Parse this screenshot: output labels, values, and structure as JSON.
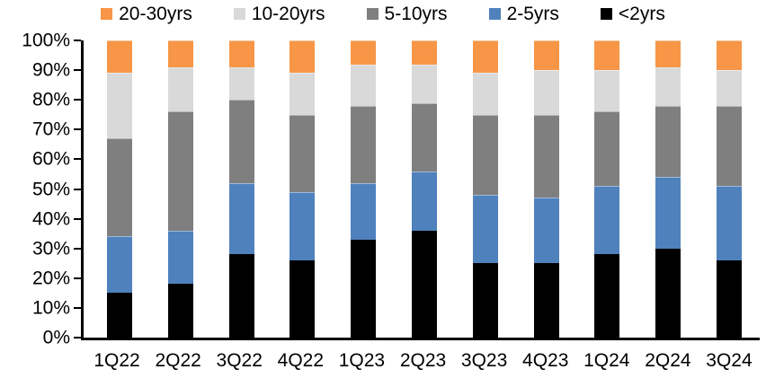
{
  "chart_data": {
    "type": "bar",
    "stacked": true,
    "percent_stacked": true,
    "orientation": "vertical",
    "title": "",
    "xlabel": "",
    "ylabel": "",
    "grid": false,
    "background": "#FFFFFF",
    "axis_color": "#000000",
    "categories": [
      "1Q22",
      "2Q22",
      "3Q22",
      "4Q22",
      "1Q23",
      "2Q23",
      "3Q23",
      "4Q23",
      "1Q24",
      "2Q24",
      "3Q24"
    ],
    "series": [
      {
        "name": "<2yrs",
        "color": "#000000",
        "values": [
          15,
          18,
          28,
          26,
          33,
          36,
          25,
          25,
          28,
          30,
          26
        ]
      },
      {
        "name": "2-5yrs",
        "color": "#4F81BD",
        "values": [
          19,
          18,
          24,
          23,
          19,
          20,
          23,
          22,
          23,
          24,
          25
        ]
      },
      {
        "name": "5-10yrs",
        "color": "#7F7F7F",
        "values": [
          33,
          40,
          28,
          26,
          26,
          23,
          27,
          28,
          25,
          24,
          27
        ]
      },
      {
        "name": "10-20yrs",
        "color": "#D9D9D9",
        "values": [
          22,
          15,
          11,
          14,
          14,
          13,
          14,
          15,
          14,
          13,
          12
        ]
      },
      {
        "name": "20-30yrs",
        "color": "#F69646",
        "values": [
          11,
          9,
          9,
          11,
          8,
          8,
          11,
          10,
          10,
          9,
          10
        ]
      }
    ],
    "legend": {
      "position": "top",
      "order": [
        "20-30yrs",
        "10-20yrs",
        "5-10yrs",
        "2-5yrs",
        "<2yrs"
      ]
    },
    "y_axis": {
      "min": 0,
      "max": 100,
      "unit": "%",
      "ticks": [
        "0%",
        "10%",
        "20%",
        "30%",
        "40%",
        "50%",
        "60%",
        "70%",
        "80%",
        "90%",
        "100%"
      ]
    }
  }
}
